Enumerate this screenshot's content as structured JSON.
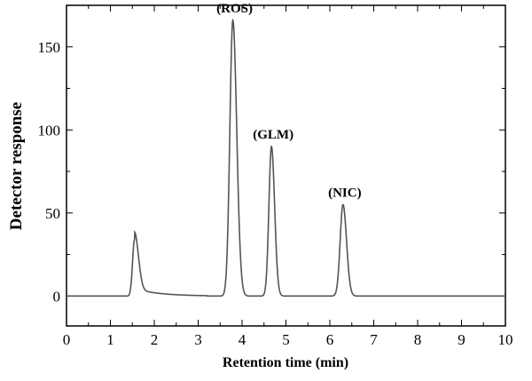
{
  "chart_data": {
    "type": "line",
    "title": "",
    "xlabel": "Retention time (min)",
    "ylabel": "Detector response",
    "xlim": [
      0,
      10
    ],
    "ylim": [
      -18,
      175
    ],
    "x_ticks": [
      0,
      1,
      2,
      3,
      4,
      5,
      6,
      7,
      8,
      9,
      10
    ],
    "y_ticks": [
      0,
      50,
      100,
      150
    ],
    "grid": false,
    "baseline": 0,
    "peaks": [
      {
        "label": "",
        "rt": 1.55,
        "height": 34
      },
      {
        "label": "(ROS)",
        "rt": 3.79,
        "height": 166
      },
      {
        "label": "(GLM)",
        "rt": 4.67,
        "height": 90
      },
      {
        "label": "(NIC)",
        "rt": 6.3,
        "height": 55
      }
    ],
    "colors": {
      "line": "#555555",
      "axis": "#000000"
    }
  }
}
